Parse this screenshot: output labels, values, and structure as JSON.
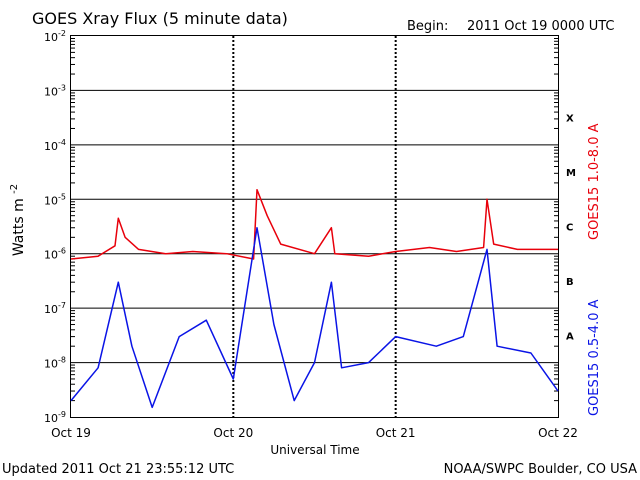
{
  "header": {
    "title": "GOES Xray Flux (5 minute data)",
    "begin_label": "Begin:",
    "begin_value": "2011 Oct 19 0000 UTC"
  },
  "footer": {
    "updated": "Updated 2011 Oct 21 23:55:12 UTC",
    "source": "NOAA/SWPC Boulder, CO USA"
  },
  "chart_data": {
    "type": "line",
    "title": "GOES Xray Flux (5 minute data)",
    "xlabel": "Universal Time",
    "ylabel": "Watts m",
    "ylabel_exp": "-2",
    "y_scale": "log",
    "ylim": [
      1e-09,
      0.01
    ],
    "xlim": [
      "2011-10-19 00:00",
      "2011-10-22 00:00"
    ],
    "x_ticks": [
      "Oct 19",
      "Oct 20",
      "Oct 21",
      "Oct 22"
    ],
    "y_ticks": [
      {
        "base": "10",
        "exp": "-9"
      },
      {
        "base": "10",
        "exp": "-8"
      },
      {
        "base": "10",
        "exp": "-7"
      },
      {
        "base": "10",
        "exp": "-6"
      },
      {
        "base": "10",
        "exp": "-5"
      },
      {
        "base": "10",
        "exp": "-4"
      },
      {
        "base": "10",
        "exp": "-3"
      },
      {
        "base": "10",
        "exp": "-2"
      }
    ],
    "flare_classes": [
      "A",
      "B",
      "C",
      "M",
      "X"
    ],
    "grid": true,
    "series": [
      {
        "name": "GOES15 1.0-8.0 A",
        "color": "#e8000b",
        "points": [
          [
            "2011-10-19 00:00",
            8e-07
          ],
          [
            "2011-10-19 04:00",
            9e-07
          ],
          [
            "2011-10-19 06:30",
            1.4e-06
          ],
          [
            "2011-10-19 07:00",
            4.5e-06
          ],
          [
            "2011-10-19 08:00",
            2e-06
          ],
          [
            "2011-10-19 10:00",
            1.2e-06
          ],
          [
            "2011-10-19 14:00",
            1e-06
          ],
          [
            "2011-10-19 18:00",
            1.1e-06
          ],
          [
            "2011-10-19 23:00",
            1e-06
          ],
          [
            "2011-10-20 03:00",
            8e-07
          ],
          [
            "2011-10-20 03:30",
            1.5e-05
          ],
          [
            "2011-10-20 05:00",
            5e-06
          ],
          [
            "2011-10-20 07:00",
            1.5e-06
          ],
          [
            "2011-10-20 12:00",
            1e-06
          ],
          [
            "2011-10-20 14:30",
            3e-06
          ],
          [
            "2011-10-20 15:00",
            1e-06
          ],
          [
            "2011-10-20 20:00",
            9e-07
          ],
          [
            "2011-10-21 00:00",
            1.1e-06
          ],
          [
            "2011-10-21 05:00",
            1.3e-06
          ],
          [
            "2011-10-21 09:00",
            1.1e-06
          ],
          [
            "2011-10-21 13:00",
            1.3e-06
          ],
          [
            "2011-10-21 13:30",
            1e-05
          ],
          [
            "2011-10-21 14:30",
            1.5e-06
          ],
          [
            "2011-10-21 18:00",
            1.2e-06
          ],
          [
            "2011-10-22 00:00",
            1.2e-06
          ]
        ]
      },
      {
        "name": "GOES15 0.5-4.0 A",
        "color": "#0a14e6",
        "points": [
          [
            "2011-10-19 00:00",
            2e-09
          ],
          [
            "2011-10-19 04:00",
            8e-09
          ],
          [
            "2011-10-19 07:00",
            3e-07
          ],
          [
            "2011-10-19 09:00",
            2e-08
          ],
          [
            "2011-10-19 12:00",
            1.5e-09
          ],
          [
            "2011-10-19 16:00",
            3e-08
          ],
          [
            "2011-10-19 20:00",
            6e-08
          ],
          [
            "2011-10-20 00:00",
            5e-09
          ],
          [
            "2011-10-20 03:30",
            3e-06
          ],
          [
            "2011-10-20 06:00",
            5e-08
          ],
          [
            "2011-10-20 09:00",
            2e-09
          ],
          [
            "2011-10-20 12:00",
            1e-08
          ],
          [
            "2011-10-20 14:30",
            3e-07
          ],
          [
            "2011-10-20 16:00",
            8e-09
          ],
          [
            "2011-10-20 20:00",
            1e-08
          ],
          [
            "2011-10-21 00:00",
            3e-08
          ],
          [
            "2011-10-21 06:00",
            2e-08
          ],
          [
            "2011-10-21 10:00",
            3e-08
          ],
          [
            "2011-10-21 13:30",
            1.2e-06
          ],
          [
            "2011-10-21 15:00",
            2e-08
          ],
          [
            "2011-10-21 20:00",
            1.5e-08
          ],
          [
            "2011-10-22 00:00",
            3e-09
          ]
        ]
      }
    ]
  }
}
